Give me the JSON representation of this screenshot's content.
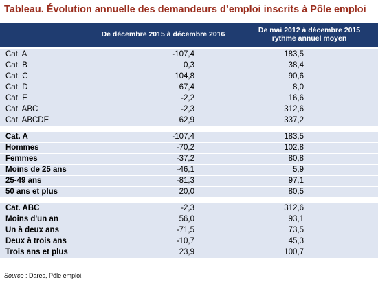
{
  "title": "Tableau. Évolution annuelle des demandeurs d’emploi inscrits à Pôle emploi",
  "header": {
    "col1": "De décembre 2015 à décembre 2016",
    "col2": [
      "De mai 2012 à décembre 2015",
      "rythme annuel moyen"
    ]
  },
  "groups": [
    {
      "rows": [
        [
          "Cat. A",
          "-107,4",
          "183,5"
        ],
        [
          "Cat. B",
          "0,3",
          "38,4"
        ],
        [
          "Cat. C",
          "104,8",
          "90,6"
        ],
        [
          "Cat. D",
          "67,4",
          "8,0"
        ],
        [
          "Cat. E",
          "-2,2",
          "16,6"
        ],
        [
          "Cat. ABC",
          "-2,3",
          "312,6"
        ],
        [
          "Cat. ABCDE",
          "62,9",
          "337,2"
        ]
      ]
    },
    {
      "rows": [
        [
          "Cat. A",
          "-107,4",
          "183,5"
        ],
        [
          "Hommes",
          "-70,2",
          "102,8"
        ],
        [
          "Femmes",
          "-37,2",
          "80,8"
        ],
        [
          "Moins de 25 ans",
          "-46,1",
          "5,9"
        ],
        [
          "25-49 ans",
          "-81,3",
          "97,1"
        ],
        [
          "50 ans et plus",
          "20,0",
          "80,5"
        ]
      ]
    },
    {
      "rows": [
        [
          "Cat. ABC",
          "-2,3",
          "312,6"
        ],
        [
          "Moins d'un an",
          "56,0",
          "93,1"
        ],
        [
          "Un à deux ans",
          "-71,5",
          "73,5"
        ],
        [
          "Deux à trois ans",
          "-10,7",
          "45,3"
        ],
        [
          "Trois ans et plus",
          "23,9",
          "100,7"
        ]
      ]
    }
  ],
  "source": {
    "label": "Source",
    "text": ": Dares, Pôle emploi."
  }
}
